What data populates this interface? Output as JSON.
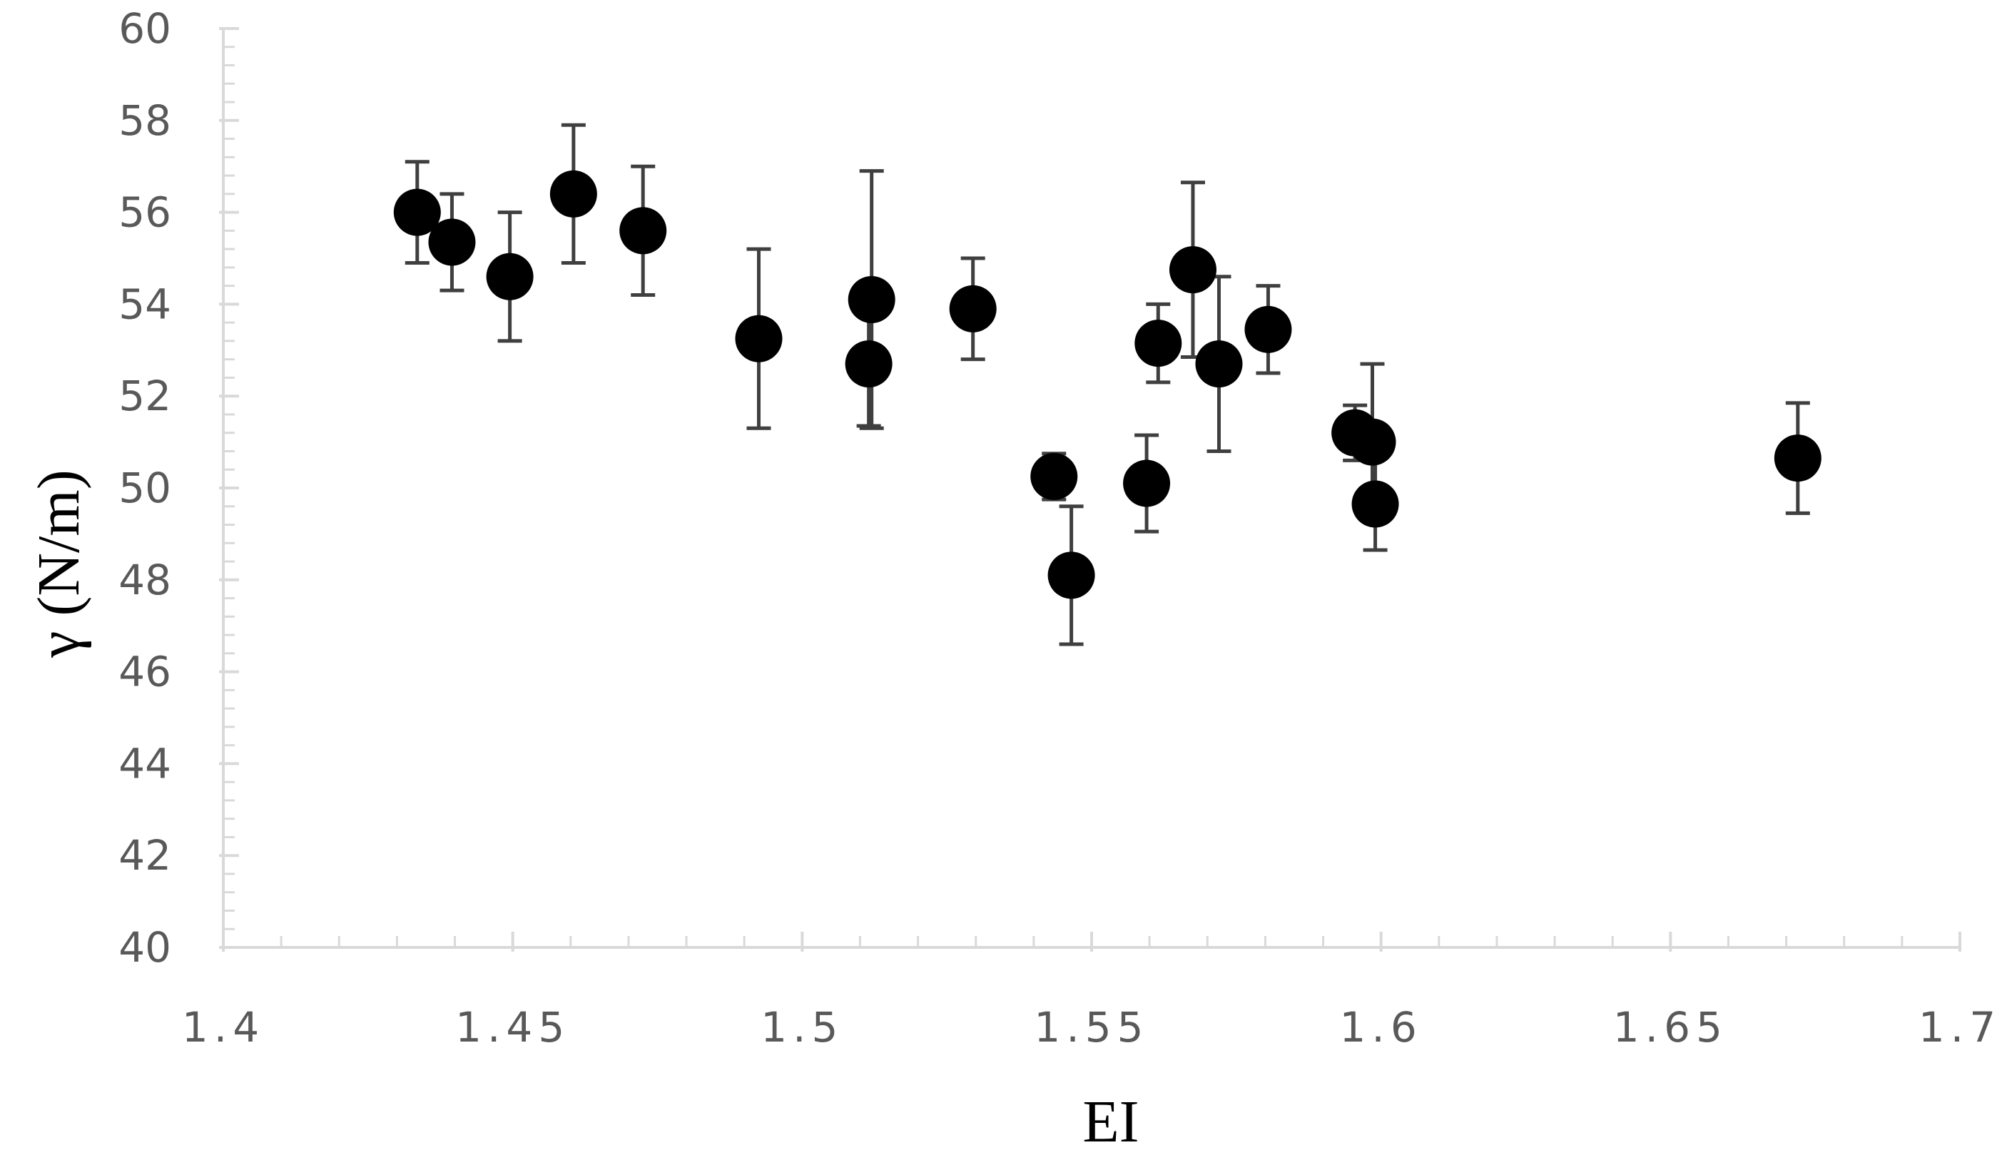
{
  "chart_data": {
    "type": "scatter",
    "title": "",
    "xlabel": "EI",
    "ylabel": "γ  (N/m)",
    "xlim": [
      1.4,
      1.7
    ],
    "ylim": [
      40,
      60
    ],
    "x_ticks": [
      1.4,
      1.45,
      1.5,
      1.55,
      1.6,
      1.65,
      1.7
    ],
    "x_tick_labels": [
      "1.4",
      "1.45",
      "1.5",
      "1.55",
      "1.6",
      "1.65",
      "1.7"
    ],
    "y_ticks": [
      40,
      42,
      44,
      46,
      48,
      50,
      52,
      54,
      56,
      58,
      60
    ],
    "y_tick_labels": [
      "40",
      "42",
      "44",
      "46",
      "48",
      "50",
      "52",
      "54",
      "56",
      "58",
      "60"
    ],
    "grid": false,
    "legend": "none",
    "marker_color": "#000000",
    "errorbar_color": "#3f3f3f",
    "axis_color": "#d9d9d9",
    "series": [
      {
        "points": [
          {
            "x": 1.4335,
            "y": 56.0,
            "yerr": 1.1
          },
          {
            "x": 1.4395,
            "y": 55.35,
            "yerr": 1.05
          },
          {
            "x": 1.4495,
            "y": 54.6,
            "yerr": 1.4
          },
          {
            "x": 1.4605,
            "y": 56.4,
            "yerr": 1.5
          },
          {
            "x": 1.4725,
            "y": 55.6,
            "yerr": 1.4
          },
          {
            "x": 1.4925,
            "y": 53.25,
            "yerr": 1.95
          },
          {
            "x": 1.5115,
            "y": 52.7,
            "yerr": 1.35
          },
          {
            "x": 1.512,
            "y": 54.1,
            "yerr": 2.8
          },
          {
            "x": 1.5295,
            "y": 53.9,
            "yerr": 1.1
          },
          {
            "x": 1.5435,
            "y": 50.25,
            "yerr": 0.5
          },
          {
            "x": 1.5465,
            "y": 48.1,
            "yerr": 1.5
          },
          {
            "x": 1.5595,
            "y": 50.1,
            "yerr": 1.05
          },
          {
            "x": 1.5615,
            "y": 53.15,
            "yerr": 0.85
          },
          {
            "x": 1.5675,
            "y": 54.75,
            "yerr": 1.9
          },
          {
            "x": 1.572,
            "y": 52.7,
            "yerr": 1.9
          },
          {
            "x": 1.5805,
            "y": 53.45,
            "yerr": 0.95
          },
          {
            "x": 1.5955,
            "y": 51.2,
            "yerr": 0.6
          },
          {
            "x": 1.5985,
            "y": 51.0,
            "yerr": 1.7
          },
          {
            "x": 1.599,
            "y": 49.65,
            "yerr": 1.0
          },
          {
            "x": 1.672,
            "y": 50.65,
            "yerr": 1.2
          }
        ]
      }
    ]
  }
}
